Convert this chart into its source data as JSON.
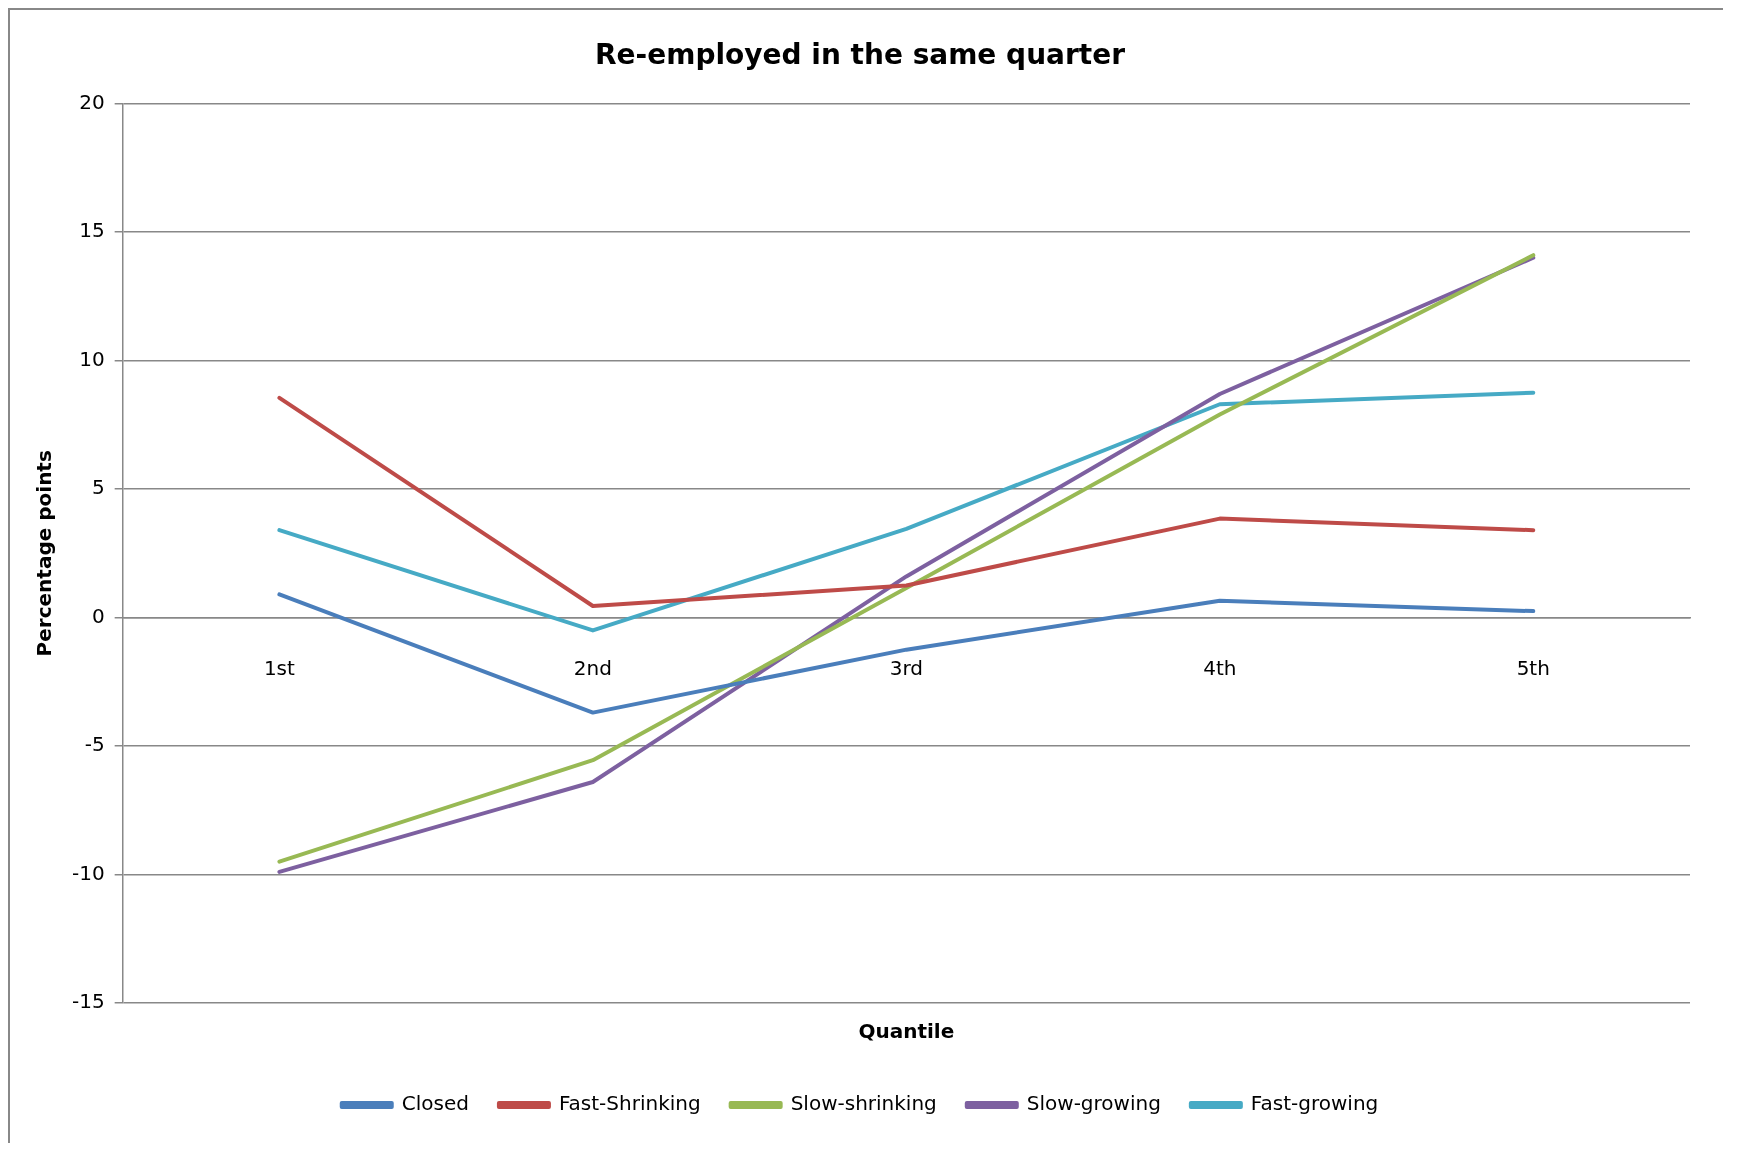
{
  "chart_data": {
    "type": "line",
    "title": "Re-employed in the same quarter",
    "xlabel": "Quantile",
    "ylabel": "Percentage points",
    "categories": [
      "1st",
      "2nd",
      "3rd",
      "4th",
      "5th"
    ],
    "series": [
      {
        "name": "Closed",
        "color": "#4a7ebb",
        "values": [
          0.9,
          -3.7,
          -1.25,
          0.65,
          0.25
        ]
      },
      {
        "name": "Fast-Shrinking",
        "color": "#be4b48",
        "values": [
          8.55,
          0.45,
          1.25,
          3.85,
          3.4
        ]
      },
      {
        "name": "Slow-shrinking",
        "color": "#98b954",
        "values": [
          -9.5,
          -5.55,
          1.15,
          7.9,
          14.1
        ]
      },
      {
        "name": "Slow-growing",
        "color": "#7d60a0",
        "values": [
          -9.9,
          -6.4,
          1.6,
          8.7,
          14.0
        ]
      },
      {
        "name": "Fast-growing",
        "color": "#46aac5",
        "values": [
          3.4,
          -0.5,
          3.45,
          8.3,
          8.75
        ]
      }
    ],
    "ylim": [
      -15,
      20
    ],
    "yticks": [
      -15,
      -10,
      -5,
      0,
      5,
      10,
      15,
      20
    ],
    "grid": "y",
    "legend": "bottom",
    "marker": "none",
    "line_style": "solid"
  }
}
